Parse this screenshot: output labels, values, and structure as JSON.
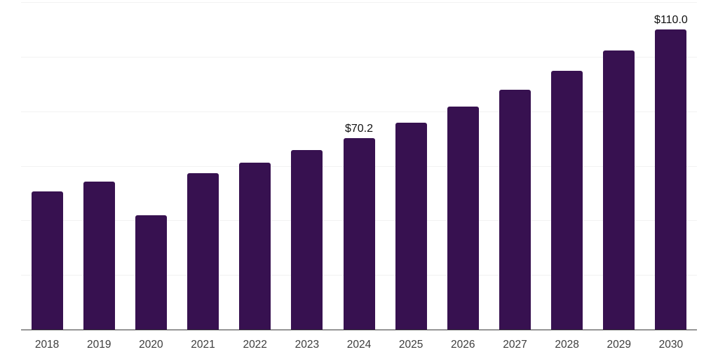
{
  "chart_data": {
    "type": "bar",
    "title": "",
    "xlabel": "",
    "ylabel": "",
    "categories": [
      "2018",
      "2019",
      "2020",
      "2021",
      "2022",
      "2023",
      "2024",
      "2025",
      "2026",
      "2027",
      "2028",
      "2029",
      "2030"
    ],
    "values": [
      50.6,
      54.2,
      42.0,
      57.3,
      61.2,
      65.7,
      70.2,
      75.8,
      81.7,
      87.9,
      94.9,
      102.3,
      110.0
    ],
    "point_labels": {
      "2024": "$70.2",
      "2030": "$110.0"
    },
    "ylim": [
      0,
      120
    ],
    "grid_step": 20,
    "grid": "horizontal-only",
    "legend_position": "none",
    "y_tick_labels_visible": false,
    "colors": {
      "bar": "#371150",
      "gridline": "#f2f2f2",
      "axis_line": "#3b3b3b",
      "tick_label": "#3d3d3d",
      "data_label": "#111111",
      "background": "#ffffff"
    }
  }
}
